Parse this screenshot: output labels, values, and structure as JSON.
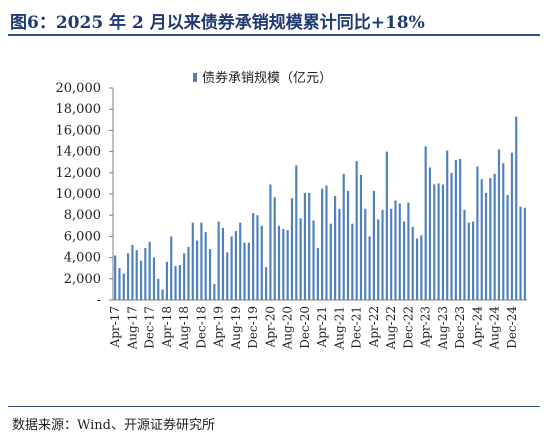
{
  "figure": {
    "title": "图6：2025 年 2 月以来债券承销规模累计同比+18%",
    "source": "数据来源：Wind、开源证券研究所"
  },
  "colors": {
    "bar": "#4f81bd",
    "axis": "#7f7f7f",
    "title": "#1f3a73"
  },
  "chart_data": {
    "type": "bar",
    "series": [
      {
        "name": "债券承销规模（亿元）",
        "values": [
          4200,
          3000,
          2500,
          4400,
          5200,
          4700,
          3700,
          4900,
          5500,
          4000,
          2000,
          1000,
          3600,
          6000,
          3200,
          3300,
          4400,
          5000,
          7300,
          5600,
          7300,
          6400,
          4800,
          1500,
          7400,
          6800,
          4500,
          6000,
          6500,
          7300,
          5400,
          5400,
          8200,
          8000,
          7000,
          3100,
          10900,
          9700,
          7000,
          6700,
          6600,
          9600,
          12700,
          7700,
          10100,
          10100,
          7500,
          4900,
          10500,
          10800,
          7200,
          9800,
          8600,
          11900,
          10300,
          7200,
          13100,
          11800,
          8600,
          6000,
          10300,
          7600,
          8500,
          14000,
          8600,
          9400,
          9100,
          7400,
          9200,
          6900,
          5800,
          6100,
          14500,
          12500,
          10900,
          11000,
          10900,
          14100,
          12000,
          13200,
          13300,
          8500,
          7300,
          7400,
          12600,
          11400,
          10100,
          11500,
          11900,
          14200,
          12900,
          9900,
          13900,
          17300,
          8800,
          8700
        ]
      }
    ],
    "tick_labels": [
      "Apr-17",
      "Aug-17",
      "Dec-17",
      "Apr-18",
      "Aug-18",
      "Dec-18",
      "Apr-19",
      "Aug-19",
      "Dec-19",
      "Apr-20",
      "Aug-20",
      "Dec-20",
      "Apr-21",
      "Aug-21",
      "Dec-21",
      "Apr-22",
      "Aug-22",
      "Dec-22",
      "Apr-23",
      "Aug-23",
      "Dec-23",
      "Apr-24",
      "Aug-24",
      "Dec-24"
    ],
    "tick_every": 4,
    "y_tick_labels": [
      "-",
      "2,000",
      "4,000",
      "6,000",
      "8,000",
      "10,000",
      "12,000",
      "14,000",
      "16,000",
      "18,000",
      "20,000"
    ],
    "ylim": [
      0,
      20000
    ],
    "y_step": 2000,
    "grid": false,
    "legend_position": "top-center"
  }
}
